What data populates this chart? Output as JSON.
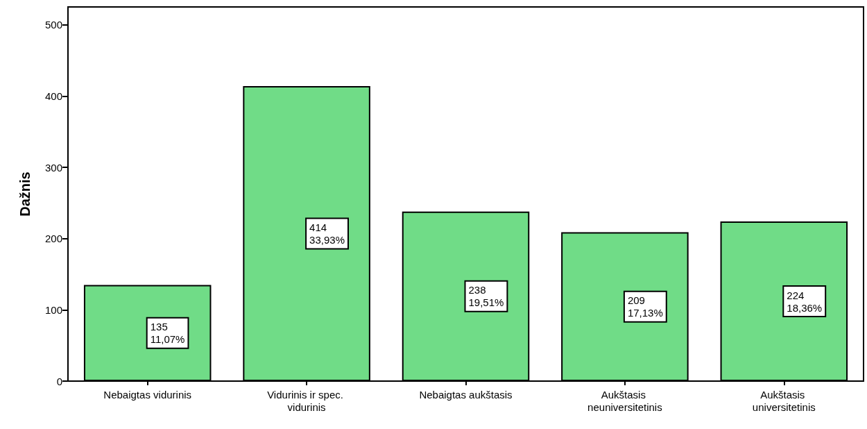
{
  "chart_data": {
    "type": "bar",
    "ylabel": "Dažnis",
    "categories": [
      "Nebaigtas vidurinis",
      "Vidurinis ir spec. vidurinis",
      "Nebaigtas aukštasis",
      "Aukštasis neuniversitetinis",
      "Aukštasis universitetinis"
    ],
    "values": [
      135,
      414,
      238,
      209,
      224
    ],
    "value_labels": [
      "135\n11,07%",
      "414\n33,93%",
      "238\n19,51%",
      "209\n17,13%",
      "224\n18,36%"
    ],
    "color": "#70dc87",
    "ylim": [
      0,
      525
    ],
    "yticks": [
      0,
      100,
      200,
      300,
      400,
      500
    ],
    "grid": false
  }
}
